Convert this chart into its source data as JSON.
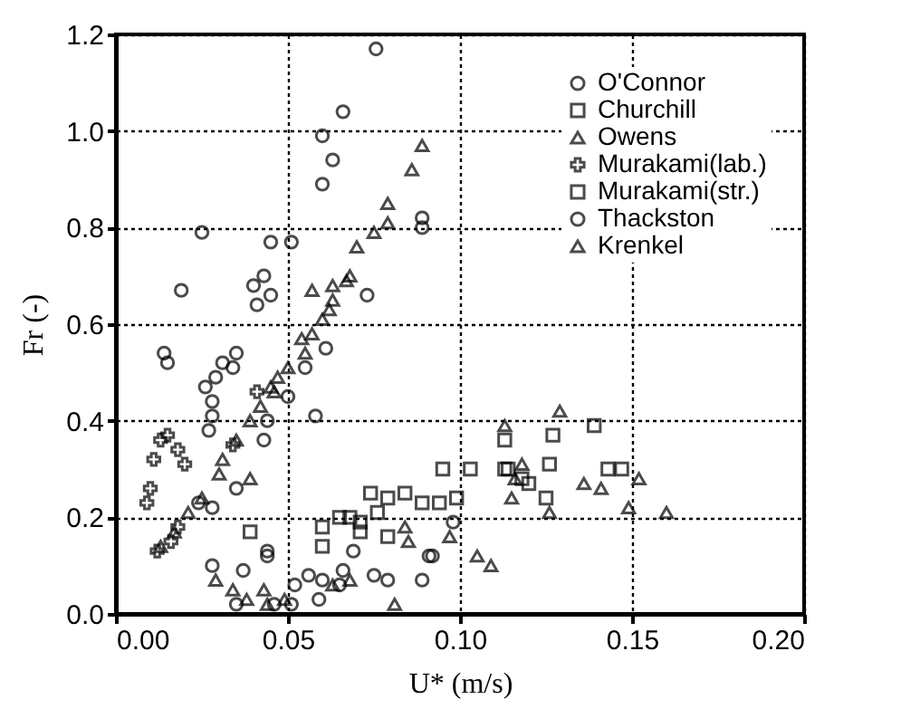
{
  "chart_data": {
    "type": "scatter",
    "xlabel": "U* (m/s)",
    "ylabel": "Fr (-)",
    "xlim": [
      0,
      0.2
    ],
    "ylim": [
      0,
      1.2
    ],
    "xticks": [
      {
        "value": 0,
        "label": "0.00"
      },
      {
        "value": 0.05,
        "label": "0.05"
      },
      {
        "value": 0.1,
        "label": "0.10"
      },
      {
        "value": 0.15,
        "label": "0.15"
      },
      {
        "value": 0.2,
        "label": "0.20"
      }
    ],
    "yticks": [
      {
        "value": 0,
        "label": "0.0"
      },
      {
        "value": 0.2,
        "label": "0.2"
      },
      {
        "value": 0.4,
        "label": "0.4"
      },
      {
        "value": 0.6,
        "label": "0.6"
      },
      {
        "value": 0.8,
        "label": "0.8"
      },
      {
        "value": 1,
        "label": "1.0"
      },
      {
        "value": 1.2,
        "label": "1.2"
      }
    ],
    "grid": true,
    "legend": "top right",
    "series": [
      {
        "name": "O'Connor",
        "color": "#000000",
        "marker": "circle",
        "x": [
          0.028,
          0.037,
          0.044,
          0.044,
          0.056,
          0.052,
          0.06,
          0.059,
          0.066,
          0.069,
          0.075,
          0.079,
          0.089,
          0.092,
          0.098,
          0.051,
          0.046,
          0.035,
          0.065,
          0.091
        ],
        "values": [
          0.1,
          0.09,
          0.13,
          0.12,
          0.08,
          0.06,
          0.07,
          0.03,
          0.09,
          0.13,
          0.08,
          0.07,
          0.07,
          0.12,
          0.19,
          0.02,
          0.02,
          0.02,
          0.06,
          0.12
        ]
      },
      {
        "name": "Churchill",
        "color": "#000000",
        "marker": "square",
        "x": [
          0.039,
          0.06,
          0.06,
          0.071,
          0.079,
          0.084,
          0.089,
          0.094,
          0.099,
          0.095,
          0.103,
          0.113,
          0.113,
          0.127,
          0.139,
          0.126,
          0.12,
          0.125,
          0.143,
          0.147,
          0.114,
          0.118
        ],
        "values": [
          0.17,
          0.18,
          0.14,
          0.19,
          0.16,
          0.25,
          0.23,
          0.23,
          0.24,
          0.3,
          0.3,
          0.36,
          0.3,
          0.37,
          0.39,
          0.31,
          0.27,
          0.24,
          0.3,
          0.3,
          0.3,
          0.28
        ]
      },
      {
        "name": "Owens",
        "color": "#000000",
        "marker": "triangle",
        "x": [
          0.129,
          0.113,
          0.116,
          0.115,
          0.126,
          0.136,
          0.141,
          0.152,
          0.149,
          0.16,
          0.105,
          0.109,
          0.097,
          0.085,
          0.084,
          0.081,
          0.068,
          0.063,
          0.049,
          0.043,
          0.038,
          0.034,
          0.029,
          0.044,
          0.118
        ],
        "values": [
          0.42,
          0.39,
          0.28,
          0.24,
          0.21,
          0.27,
          0.26,
          0.28,
          0.22,
          0.21,
          0.12,
          0.1,
          0.16,
          0.15,
          0.18,
          0.02,
          0.07,
          0.06,
          0.03,
          0.05,
          0.03,
          0.05,
          0.07,
          0.02,
          0.31
        ]
      },
      {
        "name": "Murakami(lab.)",
        "color": "#000000",
        "marker": "cross",
        "x": [
          0.01,
          0.009,
          0.011,
          0.013,
          0.015,
          0.018,
          0.02,
          0.016,
          0.012,
          0.018,
          0.041,
          0.034
        ],
        "values": [
          0.26,
          0.23,
          0.32,
          0.36,
          0.37,
          0.34,
          0.31,
          0.15,
          0.13,
          0.18,
          0.46,
          0.35
        ]
      },
      {
        "name": "Murakami(str.)",
        "color": "#000000",
        "marker": "square",
        "x": [
          0.074,
          0.079,
          0.068,
          0.065,
          0.076,
          0.071
        ],
        "values": [
          0.25,
          0.24,
          0.2,
          0.2,
          0.21,
          0.17
        ]
      },
      {
        "name": "Thackston",
        "color": "#000000",
        "marker": "circle",
        "x": [
          0.0756,
          0.066,
          0.06,
          0.063,
          0.06,
          0.089,
          0.089,
          0.025,
          0.045,
          0.051,
          0.043,
          0.04,
          0.045,
          0.041,
          0.019,
          0.073,
          0.061,
          0.055,
          0.014,
          0.015,
          0.035,
          0.031,
          0.034,
          0.029,
          0.026,
          0.028,
          0.028,
          0.027,
          0.043,
          0.044,
          0.058,
          0.035,
          0.028,
          0.024,
          0.05
        ],
        "values": [
          1.17,
          1.04,
          0.99,
          0.94,
          0.89,
          0.82,
          0.8,
          0.79,
          0.77,
          0.77,
          0.7,
          0.68,
          0.66,
          0.64,
          0.67,
          0.66,
          0.55,
          0.51,
          0.54,
          0.52,
          0.54,
          0.52,
          0.51,
          0.49,
          0.47,
          0.44,
          0.41,
          0.38,
          0.36,
          0.4,
          0.41,
          0.26,
          0.22,
          0.23,
          0.45
        ]
      },
      {
        "name": "Krenkel",
        "color": "#000000",
        "marker": "triangle",
        "x": [
          0.089,
          0.086,
          0.079,
          0.079,
          0.075,
          0.07,
          0.068,
          0.067,
          0.063,
          0.057,
          0.063,
          0.062,
          0.06,
          0.057,
          0.054,
          0.055,
          0.05,
          0.047,
          0.045,
          0.046,
          0.042,
          0.039,
          0.035,
          0.031,
          0.03,
          0.025,
          0.021,
          0.017,
          0.013,
          0.039
        ],
        "values": [
          0.97,
          0.92,
          0.85,
          0.81,
          0.79,
          0.76,
          0.7,
          0.69,
          0.68,
          0.67,
          0.65,
          0.63,
          0.61,
          0.58,
          0.57,
          0.54,
          0.51,
          0.49,
          0.47,
          0.46,
          0.43,
          0.4,
          0.36,
          0.32,
          0.29,
          0.24,
          0.21,
          0.17,
          0.14,
          0.28
        ]
      }
    ]
  }
}
